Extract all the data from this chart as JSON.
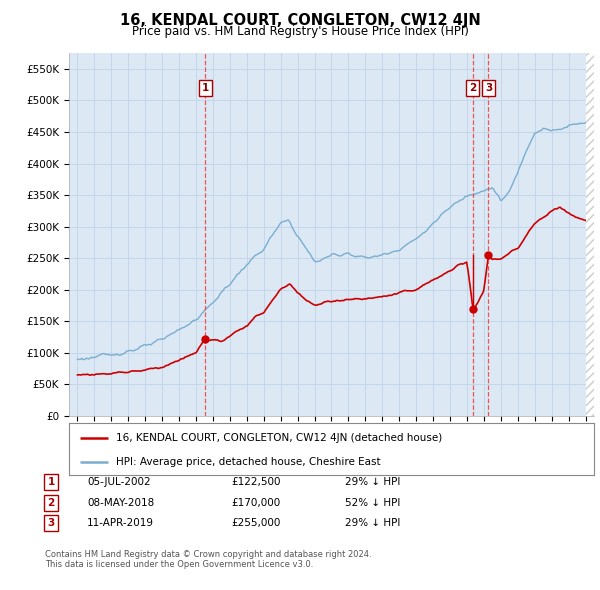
{
  "title": "16, KENDAL COURT, CONGLETON, CW12 4JN",
  "subtitle": "Price paid vs. HM Land Registry's House Price Index (HPI)",
  "legend_red": "16, KENDAL COURT, CONGLETON, CW12 4JN (detached house)",
  "legend_blue": "HPI: Average price, detached house, Cheshire East",
  "footer1": "Contains HM Land Registry data © Crown copyright and database right 2024.",
  "footer2": "This data is licensed under the Open Government Licence v3.0.",
  "transactions": [
    {
      "id": 1,
      "date": "05-JUL-2002",
      "price": 122500,
      "year": 2002.54,
      "hpi_pct": "29% ↓ HPI"
    },
    {
      "id": 2,
      "date": "08-MAY-2018",
      "price": 170000,
      "year": 2018.35,
      "hpi_pct": "52% ↓ HPI"
    },
    {
      "id": 3,
      "date": "11-APR-2019",
      "price": 255000,
      "year": 2019.27,
      "hpi_pct": "29% ↓ HPI"
    }
  ],
  "red_color": "#cc0000",
  "blue_color": "#7aadcf",
  "dashed_color": "#ee4444",
  "plot_bg_color": "#dce9f5",
  "bg_color": "#ffffff",
  "grid_color": "#c0d4e8",
  "ylim": [
    0,
    575000
  ],
  "yticks": [
    0,
    50000,
    100000,
    150000,
    200000,
    250000,
    300000,
    350000,
    400000,
    450000,
    500000,
    550000
  ],
  "xlim_start": 1994.5,
  "xlim_end": 2025.5,
  "hpi_anchors_x": [
    1995.0,
    1996.0,
    1997.0,
    1998.0,
    1999.0,
    2000.0,
    2001.0,
    2002.0,
    2003.0,
    2004.0,
    2005.0,
    2006.0,
    2007.0,
    2007.5,
    2008.0,
    2008.5,
    2009.0,
    2009.5,
    2010.0,
    2011.0,
    2012.0,
    2013.0,
    2014.0,
    2015.0,
    2016.0,
    2017.0,
    2018.0,
    2018.5,
    2019.0,
    2019.5,
    2020.0,
    2020.5,
    2021.0,
    2021.5,
    2022.0,
    2022.5,
    2023.0,
    2023.5,
    2024.0,
    2024.5,
    2025.0
  ],
  "hpi_anchors_y": [
    90000,
    93000,
    97000,
    103000,
    110000,
    120000,
    138000,
    152000,
    180000,
    210000,
    240000,
    265000,
    305000,
    310000,
    285000,
    265000,
    245000,
    248000,
    255000,
    258000,
    250000,
    255000,
    265000,
    280000,
    305000,
    330000,
    350000,
    355000,
    358000,
    362000,
    340000,
    355000,
    385000,
    420000,
    450000,
    455000,
    452000,
    455000,
    460000,
    465000,
    465000
  ],
  "pp_anchors_x": [
    1995.0,
    1996.0,
    1997.0,
    1998.0,
    1999.0,
    2000.0,
    2001.0,
    2002.0,
    2002.54,
    2003.0,
    2003.5,
    2004.0,
    2005.0,
    2006.0,
    2007.0,
    2007.5,
    2008.0,
    2008.5,
    2009.0,
    2009.5,
    2010.0,
    2011.0,
    2012.0,
    2013.0,
    2014.0,
    2015.0,
    2016.0,
    2017.0,
    2017.5,
    2018.0,
    2018.35,
    2018.5,
    2019.0,
    2019.27,
    2019.5,
    2020.0,
    2021.0,
    2022.0,
    2022.5,
    2023.0,
    2023.5,
    2024.0,
    2024.5,
    2025.0
  ],
  "pp_anchors_y": [
    65000,
    66000,
    68000,
    70000,
    73000,
    78000,
    88000,
    100000,
    122500,
    120000,
    118000,
    125000,
    145000,
    165000,
    200000,
    210000,
    195000,
    185000,
    175000,
    178000,
    182000,
    185000,
    185000,
    188000,
    195000,
    200000,
    215000,
    230000,
    240000,
    245000,
    170000,
    172000,
    200000,
    255000,
    248000,
    250000,
    265000,
    305000,
    315000,
    325000,
    330000,
    320000,
    315000,
    310000
  ]
}
